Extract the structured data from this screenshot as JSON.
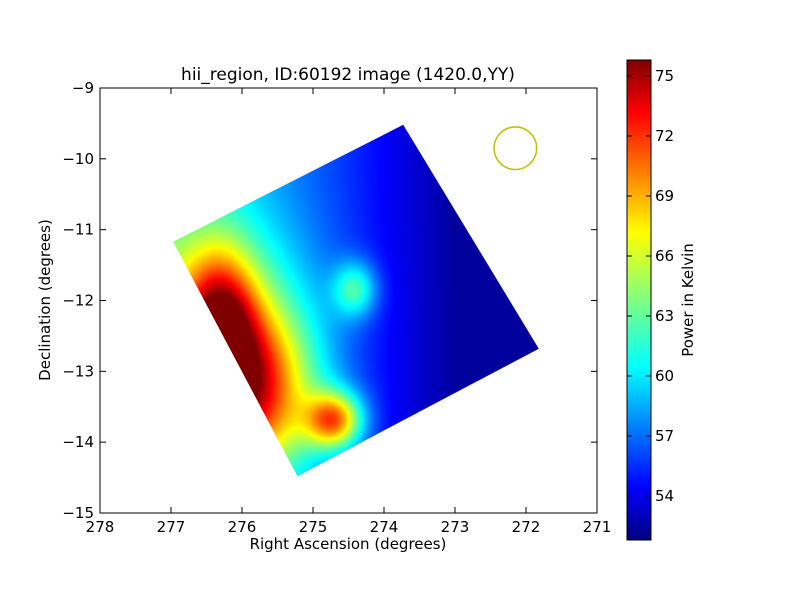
{
  "chart_data": {
    "type": "heatmap",
    "title": "hii_region, ID:60192 image (1420.0,YY)",
    "xlabel": "Right Ascension (degrees)",
    "ylabel": "Declination (degrees)",
    "xlim": [
      278,
      271
    ],
    "ylim": [
      -15,
      -9
    ],
    "x_ticks": [
      "278",
      "277",
      "276",
      "275",
      "274",
      "273",
      "272",
      "271"
    ],
    "x_tick_values": [
      278,
      277,
      276,
      275,
      274,
      273,
      272,
      271
    ],
    "y_ticks": [
      "−9",
      "−10",
      "−11",
      "−12",
      "−13",
      "−14",
      "−15"
    ],
    "y_tick_values": [
      -9,
      -10,
      -11,
      -12,
      -13,
      -14,
      -15
    ],
    "colorbar": {
      "label": "Power in Kelvin",
      "colormap": "jet",
      "range": [
        51.8,
        75.8
      ],
      "ticks": [
        "54",
        "57",
        "60",
        "63",
        "66",
        "69",
        "72",
        "75"
      ],
      "tick_values": [
        54,
        57,
        60,
        63,
        66,
        69,
        72,
        75
      ]
    },
    "map_corners_radec": [
      [
        276.97,
        -11.17
      ],
      [
        273.73,
        -9.52
      ],
      [
        271.82,
        -12.68
      ],
      [
        275.22,
        -14.48
      ]
    ],
    "background_level": 52.5,
    "features": [
      {
        "ra": 276.3,
        "dec": -12.4,
        "peak": 73.0,
        "sigma_ra": 0.35,
        "sigma_dec": 0.75
      },
      {
        "ra": 275.8,
        "dec": -13.3,
        "peak": 67.0,
        "sigma_ra": 0.55,
        "sigma_dec": 0.75
      },
      {
        "ra": 274.7,
        "dec": -13.7,
        "peak": 75.5,
        "sigma_ra": 0.28,
        "sigma_dec": 0.28
      },
      {
        "ra": 274.4,
        "dec": -11.85,
        "peak": 64.0,
        "sigma_ra": 0.22,
        "sigma_dec": 0.28
      },
      {
        "ra": 276.3,
        "dec": -13.0,
        "peak": 69.0,
        "sigma_ra": 0.9,
        "sigma_dec": 1.2
      }
    ],
    "eastward_gradient": {
      "ra_from": 273.0,
      "ra_to": 277.0,
      "max_increase": 9.0
    },
    "beam_marker": {
      "ra": 272.15,
      "dec": -9.85,
      "radius_deg": 0.3,
      "color": "#bfbf00"
    },
    "grid": false,
    "legend": "none"
  }
}
